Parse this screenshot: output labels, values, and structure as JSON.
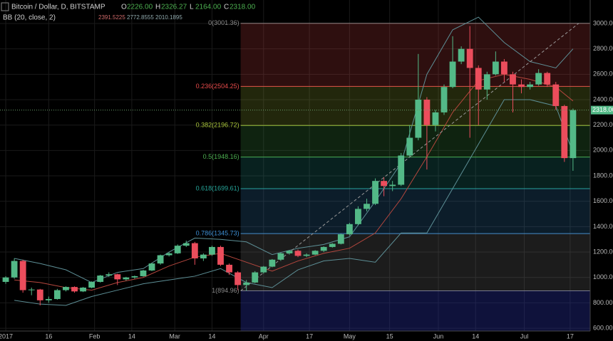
{
  "chart_data": {
    "type": "candlestick",
    "header": {
      "symbol": "Bitcoin / Dollar, D, BITSTAMP",
      "ohlc": [
        {
          "label": "O",
          "value": "2226.00"
        },
        {
          "label": "H",
          "value": "2326.27"
        },
        {
          "label": "L",
          "value": "2164.00"
        },
        {
          "label": "C",
          "value": "2318.00"
        }
      ]
    },
    "indicator": {
      "label": "BB (20, close, 2)",
      "values": [
        "2391.5225",
        "2772.8555",
        "2010.1895"
      ],
      "colors": [
        "#d06a6a",
        "#8fa8ac",
        "#8fa8ac"
      ]
    },
    "x": [
      "2017-01-01",
      "2017-01-04",
      "2017-01-07",
      "2017-01-10",
      "2017-01-13",
      "2017-01-16",
      "2017-01-19",
      "2017-01-22",
      "2017-01-25",
      "2017-01-28",
      "2017-01-31",
      "2017-02-03",
      "2017-02-06",
      "2017-02-09",
      "2017-02-12",
      "2017-02-15",
      "2017-02-18",
      "2017-02-21",
      "2017-02-24",
      "2017-02-27",
      "2017-03-02",
      "2017-03-05",
      "2017-03-08",
      "2017-03-11",
      "2017-03-14",
      "2017-03-17",
      "2017-03-20",
      "2017-03-23",
      "2017-03-26",
      "2017-03-29",
      "2017-04-01",
      "2017-04-04",
      "2017-04-07",
      "2017-04-10",
      "2017-04-13",
      "2017-04-16",
      "2017-04-19",
      "2017-04-22",
      "2017-04-25",
      "2017-04-28",
      "2017-05-01",
      "2017-05-04",
      "2017-05-07",
      "2017-05-10",
      "2017-05-13",
      "2017-05-16",
      "2017-05-19",
      "2017-05-22",
      "2017-05-25",
      "2017-05-28",
      "2017-05-31",
      "2017-06-03",
      "2017-06-06",
      "2017-06-09",
      "2017-06-12",
      "2017-06-15",
      "2017-06-18",
      "2017-06-21",
      "2017-06-24",
      "2017-06-27",
      "2017-06-30",
      "2017-07-03",
      "2017-07-06",
      "2017-07-09",
      "2017-07-12",
      "2017-07-15",
      "2017-07-18"
    ],
    "ohlc": [
      [
        965,
        1010,
        950,
        1000
      ],
      [
        1000,
        1150,
        990,
        1130
      ],
      [
        1130,
        1140,
        880,
        900
      ],
      [
        900,
        920,
        860,
        905
      ],
      [
        905,
        910,
        780,
        820
      ],
      [
        820,
        850,
        800,
        830
      ],
      [
        830,
        910,
        825,
        900
      ],
      [
        900,
        930,
        890,
        925
      ],
      [
        925,
        930,
        880,
        890
      ],
      [
        890,
        925,
        885,
        920
      ],
      [
        920,
        970,
        915,
        965
      ],
      [
        965,
        1020,
        960,
        1015
      ],
      [
        1015,
        1040,
        1005,
        1025
      ],
      [
        1025,
        1030,
        940,
        985
      ],
      [
        985,
        1005,
        975,
        1000
      ],
      [
        1000,
        1015,
        990,
        1010
      ],
      [
        1010,
        1060,
        1005,
        1055
      ],
      [
        1055,
        1115,
        1050,
        1110
      ],
      [
        1110,
        1180,
        1100,
        1175
      ],
      [
        1175,
        1200,
        1165,
        1190
      ],
      [
        1190,
        1260,
        1185,
        1250
      ],
      [
        1250,
        1290,
        1240,
        1270
      ],
      [
        1270,
        1280,
        1100,
        1150
      ],
      [
        1150,
        1190,
        1130,
        1180
      ],
      [
        1180,
        1250,
        1170,
        1240
      ],
      [
        1240,
        1250,
        1090,
        1100
      ],
      [
        1100,
        1110,
        1020,
        1040
      ],
      [
        1040,
        1050,
        900,
        940
      ],
      [
        940,
        980,
        895,
        960
      ],
      [
        960,
        1050,
        955,
        1040
      ],
      [
        1040,
        1090,
        1030,
        1085
      ],
      [
        1085,
        1145,
        1080,
        1140
      ],
      [
        1140,
        1195,
        1130,
        1190
      ],
      [
        1190,
        1215,
        1180,
        1210
      ],
      [
        1210,
        1220,
        1160,
        1170
      ],
      [
        1170,
        1190,
        1160,
        1180
      ],
      [
        1180,
        1215,
        1175,
        1210
      ],
      [
        1210,
        1245,
        1200,
        1240
      ],
      [
        1240,
        1270,
        1235,
        1265
      ],
      [
        1265,
        1345,
        1260,
        1340
      ],
      [
        1340,
        1430,
        1330,
        1420
      ],
      [
        1420,
        1560,
        1410,
        1540
      ],
      [
        1540,
        1620,
        1520,
        1580
      ],
      [
        1580,
        1780,
        1570,
        1760
      ],
      [
        1760,
        1790,
        1640,
        1720
      ],
      [
        1720,
        1760,
        1680,
        1730
      ],
      [
        1730,
        1980,
        1720,
        1960
      ],
      [
        1960,
        2200,
        1950,
        2100
      ],
      [
        2100,
        2760,
        2080,
        2400
      ],
      [
        2400,
        2420,
        1850,
        2200
      ],
      [
        2200,
        2320,
        2150,
        2300
      ],
      [
        2300,
        2520,
        2280,
        2500
      ],
      [
        2500,
        2900,
        2490,
        2700
      ],
      [
        2700,
        2820,
        2680,
        2800
      ],
      [
        2800,
        2980,
        2100,
        2650
      ],
      [
        2650,
        2670,
        2200,
        2480
      ],
      [
        2480,
        2620,
        2400,
        2600
      ],
      [
        2600,
        2780,
        2590,
        2700
      ],
      [
        2700,
        2720,
        2540,
        2600
      ],
      [
        2600,
        2620,
        2300,
        2520
      ],
      [
        2520,
        2560,
        2450,
        2500
      ],
      [
        2500,
        2540,
        2480,
        2520
      ],
      [
        2520,
        2640,
        2510,
        2610
      ],
      [
        2610,
        2620,
        2500,
        2520
      ],
      [
        2520,
        2540,
        2320,
        2350
      ],
      [
        2350,
        2360,
        1910,
        1940
      ],
      [
        1940,
        2330,
        1840,
        2318
      ]
    ],
    "up_color": "#53b987",
    "down_color": "#eb4d5c",
    "bands": {
      "x": [
        "2017-01-04",
        "2017-01-13",
        "2017-01-22",
        "2017-01-31",
        "2017-02-09",
        "2017-02-18",
        "2017-02-27",
        "2017-03-08",
        "2017-03-17",
        "2017-03-26",
        "2017-04-04",
        "2017-04-13",
        "2017-04-22",
        "2017-05-01",
        "2017-05-10",
        "2017-05-19",
        "2017-05-28",
        "2017-06-06",
        "2017-06-15",
        "2017-06-24",
        "2017-07-03",
        "2017-07-12",
        "2017-07-18"
      ],
      "series": [
        {
          "color": "#5d8f96",
          "values": [
            1150,
            1110,
            1060,
            960,
            1040,
            1070,
            1200,
            1310,
            1300,
            1280,
            1180,
            1230,
            1260,
            1320,
            1600,
            1900,
            2600,
            2950,
            3050,
            2850,
            2700,
            2650,
            2800
          ]
        },
        {
          "color": "#b5473e",
          "values": [
            980,
            960,
            920,
            900,
            960,
            1000,
            1090,
            1160,
            1190,
            1120,
            1050,
            1130,
            1190,
            1230,
            1350,
            1620,
            1950,
            2300,
            2550,
            2600,
            2560,
            2500,
            2390
          ]
        },
        {
          "color": "#5d8f96",
          "values": [
            820,
            790,
            780,
            850,
            900,
            950,
            980,
            1010,
            1070,
            960,
            920,
            1060,
            1130,
            1150,
            1120,
            1350,
            1350,
            1700,
            2050,
            2400,
            2400,
            2350,
            1980
          ]
        }
      ]
    },
    "fib": {
      "start": "2017-03-24",
      "levels": [
        {
          "value": 3001.36,
          "label": "0(3001.36)",
          "color": "#8a8a8a"
        },
        {
          "value": 2504.25,
          "label": "0.236(2504.25)",
          "color": "#e84b4b"
        },
        {
          "value": 2196.72,
          "label": "0.382(2196.72)",
          "color": "#a8c43a"
        },
        {
          "value": 1948.16,
          "label": "0.5(1948.16)",
          "color": "#4caf50"
        },
        {
          "value": 1699.61,
          "label": "0.618(1699.61)",
          "color": "#26a69a"
        },
        {
          "value": 1345.73,
          "label": "0.786(1345.73)",
          "color": "#3d8fd4"
        },
        {
          "value": 894.96,
          "label": "1(894.96)",
          "color": "#8a8a8a"
        }
      ],
      "extend_color": "#2b35a8"
    },
    "trend_line": {
      "x": [
        "2017-03-24",
        "2017-07-20"
      ],
      "values": [
        894.96,
        3001.36
      ]
    },
    "last_price": {
      "value": 2318,
      "label": "2318.00"
    },
    "xlim": [
      "2016-12-30",
      "2017-07-24"
    ],
    "xticks": [
      {
        "value": "2017-01-01",
        "label": "2017"
      },
      {
        "value": "2017-01-16",
        "label": "16"
      },
      {
        "value": "2017-02-01",
        "label": "Feb"
      },
      {
        "value": "2017-02-14",
        "label": "14"
      },
      {
        "value": "2017-03-01",
        "label": "Mar"
      },
      {
        "value": "2017-03-14",
        "label": "14"
      },
      {
        "value": "2017-04-01",
        "label": "Apr"
      },
      {
        "value": "2017-04-17",
        "label": "17"
      },
      {
        "value": "2017-05-01",
        "label": "May"
      },
      {
        "value": "2017-05-15",
        "label": "15"
      },
      {
        "value": "2017-06-01",
        "label": "Jun"
      },
      {
        "value": "2017-06-14",
        "label": "14"
      },
      {
        "value": "2017-07-01",
        "label": "Jul"
      },
      {
        "value": "2017-07-17",
        "label": "17"
      }
    ],
    "ylim": [
      578,
      3185
    ],
    "yticks": [
      {
        "value": 600,
        "label": "600.00"
      },
      {
        "value": 800,
        "label": "800.00"
      },
      {
        "value": 1000,
        "label": "1000.00"
      },
      {
        "value": 1200,
        "label": "1200.00"
      },
      {
        "value": 1400,
        "label": "1400.00"
      },
      {
        "value": 1600,
        "label": "1600.00"
      },
      {
        "value": 1800,
        "label": "1800.00"
      },
      {
        "value": 2000,
        "label": "2000.00"
      },
      {
        "value": 2200,
        "label": "2200.00"
      },
      {
        "value": 2400,
        "label": "2400.00"
      },
      {
        "value": 2600,
        "label": "2600.00"
      },
      {
        "value": 2800,
        "label": "2800.00"
      },
      {
        "value": 3000,
        "label": "3000.00"
      }
    ],
    "grid": true
  }
}
